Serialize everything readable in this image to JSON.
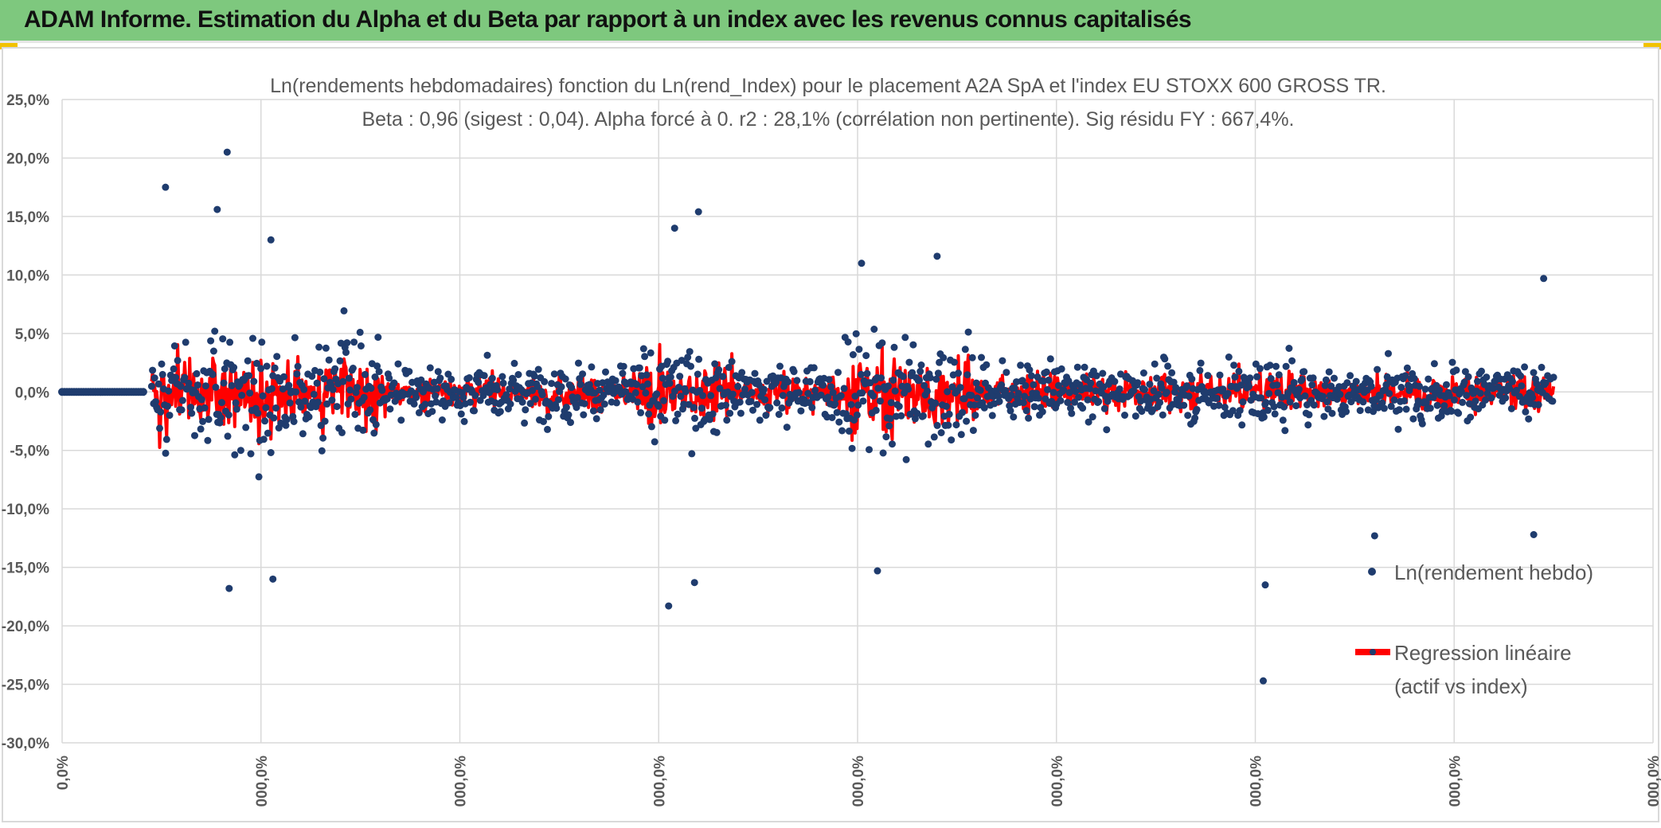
{
  "banner": {
    "title": "ADAM Informe. Estimation du Alpha et du Beta par rapport à un index avec les revenus connus capitalisés"
  },
  "colors": {
    "banner_bg": "#7ec87e",
    "accent": "#f2c200",
    "points": "#1f3c6e",
    "regression": "#ff0000",
    "grid": "#d9d9d9",
    "text": "#595959"
  },
  "chart_data": {
    "type": "scatter",
    "title": "Ln(rendements hebdomadaires) fonction du Ln(rend_Index) pour le placement A2A SpA et l'index EU STOXX 600 GROSS TR.",
    "subtitle": "Beta : 0,96 (sigest : 0,04). Alpha forcé à 0. r2 : 28,1% (corrélation non pertinente). Sig résidu FY : 667,4%.",
    "xlabel": "",
    "ylabel": "",
    "ylim": [
      -30,
      25
    ],
    "yticks": [
      "25,0%",
      "20,0%",
      "15,0%",
      "10,0%",
      "5,0%",
      "0,0%",
      "-5,0%",
      "-10,0%",
      "-15,0%",
      "-20,0%",
      "-25,0%",
      "-30,0%"
    ],
    "xlim": [
      0,
      8
    ],
    "xticks": [
      "0,0%",
      "000,0%",
      "000,0%",
      "000,0%",
      "000,0%",
      "000,0%",
      "000,0%",
      "000,0%",
      "000,0%"
    ],
    "grid": true,
    "legend_placement": "right",
    "series": [
      {
        "name": "Ln(rendement hebdo)",
        "kind": "points",
        "n_points": 1400
      },
      {
        "name": "Regression linéaire (actif vs index)",
        "kind": "line",
        "beta": 0.96
      }
    ],
    "notable_values": [
      {
        "x": 0.83,
        "y": 20.5
      },
      {
        "x": 0.52,
        "y": 17.5
      },
      {
        "x": 0.78,
        "y": 15.6
      },
      {
        "x": 3.2,
        "y": 15.4
      },
      {
        "x": 3.08,
        "y": 14.0
      },
      {
        "x": 1.05,
        "y": 13.0
      },
      {
        "x": 4.4,
        "y": 11.6
      },
      {
        "x": 4.02,
        "y": 11.0
      },
      {
        "x": 7.45,
        "y": 9.7
      },
      {
        "x": 0.84,
        "y": -16.8
      },
      {
        "x": 1.06,
        "y": -16.0
      },
      {
        "x": 3.05,
        "y": -18.3
      },
      {
        "x": 3.18,
        "y": -16.3
      },
      {
        "x": 4.1,
        "y": -15.3
      },
      {
        "x": 6.05,
        "y": -16.5
      },
      {
        "x": 6.04,
        "y": -24.7
      },
      {
        "x": 6.6,
        "y": -12.3
      },
      {
        "x": 7.4,
        "y": -12.2
      }
    ],
    "legend": {
      "points_label": "Ln(rendement hebdo)",
      "line_label_1": "Regression linéaire",
      "line_label_2": "(actif vs index)"
    }
  }
}
